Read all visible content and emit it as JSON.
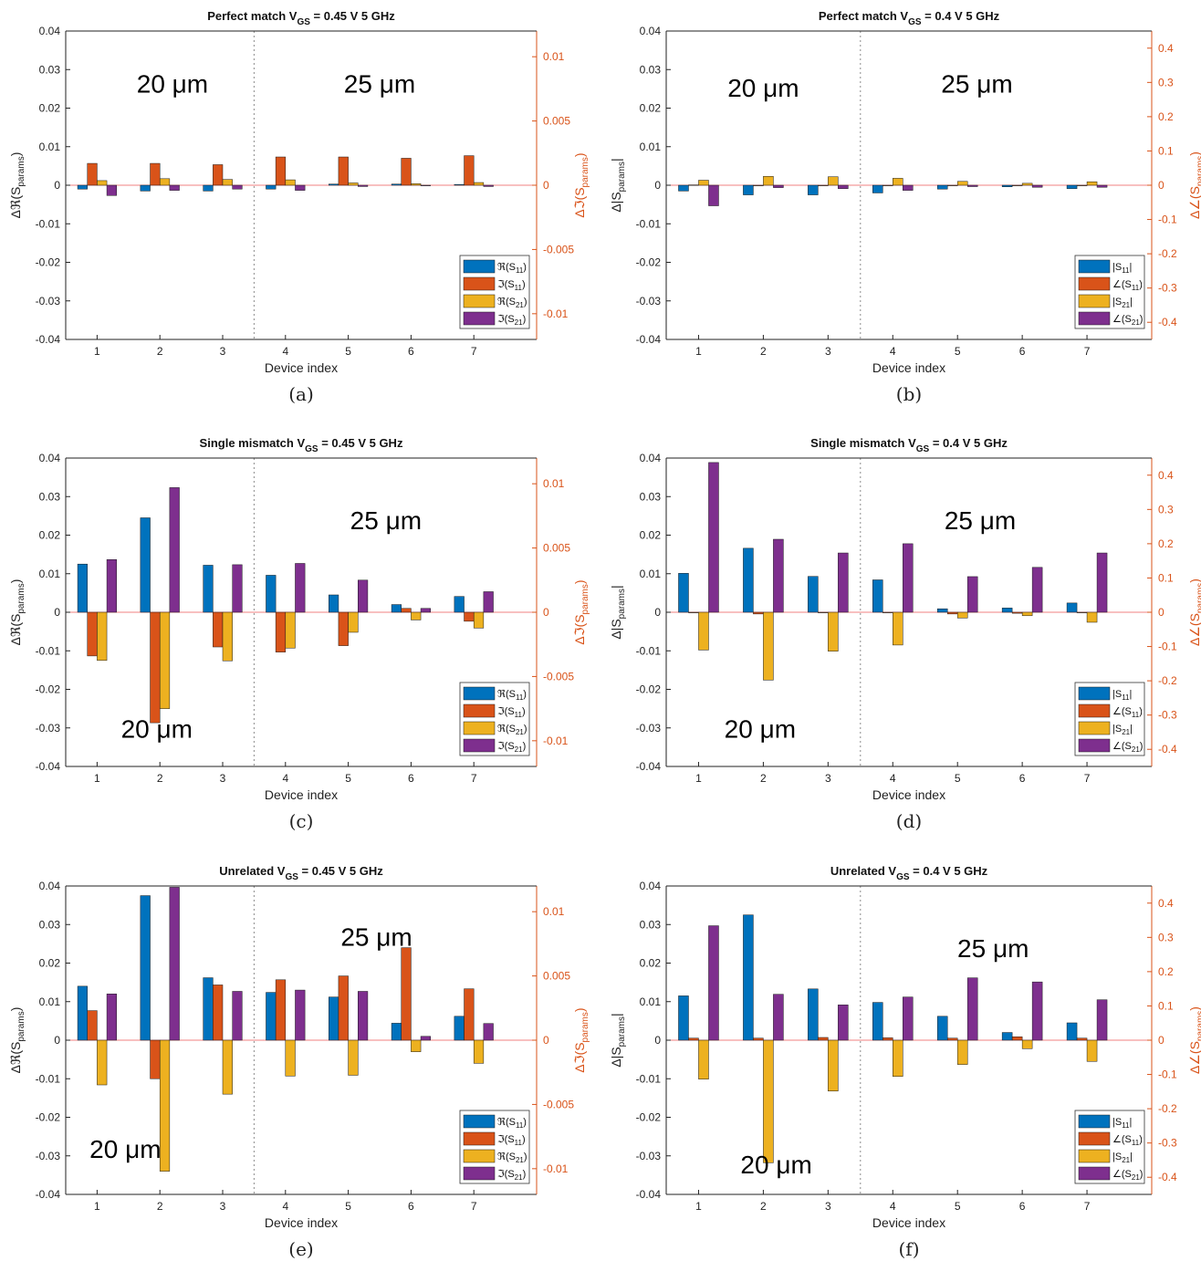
{
  "colors": {
    "s11_primary": "#0072BD",
    "s11_secondary": "#D95319",
    "s21_primary": "#EDB120",
    "s21_secondary": "#7E2F8E",
    "right_axis": "#D95319",
    "axis": "#222222",
    "divider": "#8c8c8c"
  },
  "chart_data": [
    {
      "id": "a",
      "type": "bar",
      "title_prefix": "Perfect match V",
      "title_sub": "GS",
      "title_suffix": " = 0.45 V 5 GHz",
      "xlabel": "Device index",
      "ylabel": "Δℜ(S",
      "ylabel_sub": "params",
      "ylabel_close": ")",
      "y2label": "Δℑ(S",
      "y2label_sub": "params",
      "y2label_close": ")",
      "categories": [
        "1",
        "2",
        "3",
        "4",
        "5",
        "6",
        "7"
      ],
      "ylim": [
        -0.04,
        0.04
      ],
      "yticks": [
        -0.04,
        -0.03,
        -0.02,
        -0.01,
        0,
        0.01,
        0.02,
        0.03,
        0.04
      ],
      "ytick_labels": [
        "-0.04",
        "-0.03",
        "-0.02",
        "-0.01",
        "0",
        "0.01",
        "0.02",
        "0.03",
        "0.04"
      ],
      "y2lim": [
        -0.012,
        0.012
      ],
      "y2ticks": [
        -0.01,
        -0.005,
        0,
        0.005,
        0.01
      ],
      "y2tick_labels": [
        "-0.01",
        "-0.005",
        "0",
        "0.005",
        "0.01"
      ],
      "annotations": [
        {
          "text": "20 μm",
          "x": 2.2,
          "y": 0.024
        },
        {
          "text": "25 μm",
          "x": 5.5,
          "y": 0.024
        }
      ],
      "legend_position": "bottom-right",
      "series": [
        {
          "name": "ℜ(S11)",
          "name_main": "ℜ(S",
          "name_sub": "11",
          "name_close": ")",
          "axis": "left",
          "values": [
            -0.001,
            -0.0015,
            -0.0015,
            -0.001,
            0.0003,
            0.0003,
            0.0002
          ]
        },
        {
          "name": "ℑ(S11)",
          "name_main": "ℑ(S",
          "name_sub": "11",
          "name_close": ")",
          "axis": "right",
          "values": [
            0.0017,
            0.0017,
            0.0016,
            0.0022,
            0.0022,
            0.0021,
            0.0023
          ]
        },
        {
          "name": "ℜ(S21)",
          "name_main": "ℜ(S",
          "name_sub": "21",
          "name_close": ")",
          "axis": "left",
          "values": [
            0.0012,
            0.0017,
            0.0015,
            0.0014,
            0.0006,
            0.0004,
            0.0007
          ]
        },
        {
          "name": "ℑ(S21)",
          "name_main": "ℑ(S",
          "name_sub": "21",
          "name_close": ")",
          "axis": "right",
          "values": [
            -0.0008,
            -0.0004,
            -0.0003,
            -0.0004,
            -0.0001,
            0.0,
            -0.0001
          ]
        }
      ],
      "caption": "(a)"
    },
    {
      "id": "b",
      "type": "bar",
      "title_prefix": "Perfect match V",
      "title_sub": "GS",
      "title_suffix": " = 0.4 V 5 GHz",
      "xlabel": "Device index",
      "ylabel": "Δ|S",
      "ylabel_sub": "params",
      "ylabel_close": "|",
      "y2label": "Δ∠(S",
      "y2label_sub": "params",
      "y2label_close": ")",
      "categories": [
        "1",
        "2",
        "3",
        "4",
        "5",
        "6",
        "7"
      ],
      "ylim": [
        -0.04,
        0.04
      ],
      "yticks": [
        -0.04,
        -0.03,
        -0.02,
        -0.01,
        0,
        0.01,
        0.02,
        0.03,
        0.04
      ],
      "ytick_labels": [
        "-0.04",
        "-0.03",
        "-0.02",
        "-0.01",
        "0",
        "0.01",
        "0.02",
        "0.03",
        "0.04"
      ],
      "y2lim": [
        -0.45,
        0.45
      ],
      "y2ticks": [
        -0.4,
        -0.3,
        -0.2,
        -0.1,
        0,
        0.1,
        0.2,
        0.3,
        0.4
      ],
      "y2tick_labels": [
        "-0.4",
        "-0.3",
        "-0.2",
        "-0.1",
        "0",
        "0.1",
        "0.2",
        "0.3",
        "0.4"
      ],
      "annotations": [
        {
          "text": "20 μm",
          "x": 2.0,
          "y": 0.023
        },
        {
          "text": "25 μm",
          "x": 5.3,
          "y": 0.024
        }
      ],
      "legend_position": "bottom-right",
      "series": [
        {
          "name": "|S11|",
          "name_main": "|S",
          "name_sub": "11",
          "name_close": "|",
          "axis": "left",
          "values": [
            -0.0015,
            -0.0025,
            -0.0025,
            -0.002,
            -0.001,
            -0.0004,
            -0.0009
          ]
        },
        {
          "name": "∠(S11)",
          "name_main": "∠(S",
          "name_sub": "11",
          "name_close": ")",
          "axis": "right",
          "values": [
            0.001,
            0.0,
            0.0,
            0.0,
            0.0,
            0.0,
            0.0
          ]
        },
        {
          "name": "|S21|",
          "name_main": "|S",
          "name_sub": "21",
          "name_close": "|",
          "axis": "left",
          "values": [
            0.0013,
            0.0023,
            0.0022,
            0.0018,
            0.001,
            0.0005,
            0.0009
          ]
        },
        {
          "name": "∠(S21)",
          "name_main": "∠(S",
          "name_sub": "21",
          "name_close": ")",
          "axis": "right",
          "values": [
            -0.06,
            -0.007,
            -0.01,
            -0.015,
            -0.004,
            -0.006,
            -0.006
          ]
        }
      ],
      "caption": "(b)"
    },
    {
      "id": "c",
      "type": "bar",
      "title_prefix": "Single mismatch V",
      "title_sub": "GS",
      "title_suffix": " = 0.45 V 5 GHz",
      "xlabel": "Device index",
      "ylabel": "Δℜ(S",
      "ylabel_sub": "params",
      "ylabel_close": ")",
      "y2label": "Δℑ(S",
      "y2label_sub": "params",
      "y2label_close": ")",
      "categories": [
        "1",
        "2",
        "3",
        "4",
        "5",
        "6",
        "7"
      ],
      "ylim": [
        -0.04,
        0.04
      ],
      "yticks": [
        -0.04,
        -0.03,
        -0.02,
        -0.01,
        0,
        0.01,
        0.02,
        0.03,
        0.04
      ],
      "ytick_labels": [
        "-0.04",
        "-0.03",
        "-0.02",
        "-0.01",
        "0",
        "0.01",
        "0.02",
        "0.03",
        "0.04"
      ],
      "y2lim": [
        -0.012,
        0.012
      ],
      "y2ticks": [
        -0.01,
        -0.005,
        0,
        0.005,
        0.01
      ],
      "y2tick_labels": [
        "-0.01",
        "-0.005",
        "0",
        "0.005",
        "0.01"
      ],
      "annotations": [
        {
          "text": "20 μm",
          "x": 1.95,
          "y": -0.0325
        },
        {
          "text": "25 μm",
          "x": 5.6,
          "y": 0.0215
        }
      ],
      "legend_position": "bottom-right",
      "series": [
        {
          "name": "ℜ(S11)",
          "name_main": "ℜ(S",
          "name_sub": "11",
          "name_close": ")",
          "axis": "left",
          "values": [
            0.0125,
            0.0245,
            0.0122,
            0.0096,
            0.0045,
            0.002,
            0.0041
          ]
        },
        {
          "name": "ℑ(S11)",
          "name_main": "ℑ(S",
          "name_sub": "11",
          "name_close": ")",
          "axis": "right",
          "values": [
            -0.0034,
            -0.0086,
            -0.0027,
            -0.0031,
            -0.0026,
            0.0003,
            -0.0007
          ]
        },
        {
          "name": "ℜ(S21)",
          "name_main": "ℜ(S",
          "name_sub": "21",
          "name_close": ")",
          "axis": "left",
          "values": [
            -0.0125,
            -0.025,
            -0.0126,
            -0.0093,
            -0.0052,
            -0.002,
            -0.0041
          ]
        },
        {
          "name": "ℑ(S21)",
          "name_main": "ℑ(S",
          "name_sub": "21",
          "name_close": ")",
          "axis": "right",
          "values": [
            0.0041,
            0.0097,
            0.0037,
            0.0038,
            0.0025,
            0.0003,
            0.0016
          ]
        }
      ],
      "caption": "(c)"
    },
    {
      "id": "d",
      "type": "bar",
      "title_prefix": "Single mismatch V",
      "title_sub": "GS",
      "title_suffix": " = 0.4 V 5 GHz",
      "xlabel": "Device index",
      "ylabel": "Δ|S",
      "ylabel_sub": "params",
      "ylabel_close": "|",
      "y2label": "Δ∠(S",
      "y2label_sub": "params",
      "y2label_close": ")",
      "categories": [
        "1",
        "2",
        "3",
        "4",
        "5",
        "6",
        "7"
      ],
      "ylim": [
        -0.04,
        0.04
      ],
      "yticks": [
        -0.04,
        -0.03,
        -0.02,
        -0.01,
        0,
        0.01,
        0.02,
        0.03,
        0.04
      ],
      "ytick_labels": [
        "-0.04",
        "-0.03",
        "-0.02",
        "-0.01",
        "0",
        "0.01",
        "0.02",
        "0.03",
        "0.04"
      ],
      "y2lim": [
        -0.45,
        0.45
      ],
      "y2ticks": [
        -0.4,
        -0.3,
        -0.2,
        -0.1,
        0,
        0.1,
        0.2,
        0.3,
        0.4
      ],
      "y2tick_labels": [
        "-0.4",
        "-0.3",
        "-0.2",
        "-0.1",
        "0",
        "0.1",
        "0.2",
        "0.3",
        "0.4"
      ],
      "annotations": [
        {
          "text": "20 μm",
          "x": 1.95,
          "y": -0.0325
        },
        {
          "text": "25 μm",
          "x": 5.35,
          "y": 0.0215
        }
      ],
      "legend_position": "bottom-right",
      "series": [
        {
          "name": "|S11|",
          "name_main": "|S",
          "name_sub": "11",
          "name_close": "|",
          "axis": "left",
          "values": [
            0.0101,
            0.0166,
            0.0093,
            0.0084,
            0.0009,
            0.0011,
            0.0024
          ]
        },
        {
          "name": "∠(S11)",
          "name_main": "∠(S",
          "name_sub": "11",
          "name_close": ")",
          "axis": "right",
          "values": [
            0.0,
            -0.005,
            0.0,
            0.0,
            -0.005,
            -0.003,
            0.0
          ]
        },
        {
          "name": "|S21|",
          "name_main": "|S",
          "name_sub": "21",
          "name_close": "|",
          "axis": "left",
          "values": [
            -0.0098,
            -0.0176,
            -0.0101,
            -0.0085,
            -0.0015,
            -0.0009,
            -0.0026
          ]
        },
        {
          "name": "∠(S21)",
          "name_main": "∠(S",
          "name_sub": "21",
          "name_close": ")",
          "axis": "right",
          "values": [
            0.437,
            0.213,
            0.173,
            0.2,
            0.104,
            0.131,
            0.173
          ]
        }
      ],
      "caption": "(d)"
    },
    {
      "id": "e",
      "type": "bar",
      "title_prefix": "Unrelated V",
      "title_sub": "GS",
      "title_suffix": " = 0.45 V 5 GHz",
      "xlabel": "Device index",
      "ylabel": "Δℜ(S",
      "ylabel_sub": "params",
      "ylabel_close": ")",
      "y2label": "Δℑ(S",
      "y2label_sub": "params",
      "y2label_close": ")",
      "categories": [
        "1",
        "2",
        "3",
        "4",
        "5",
        "6",
        "7"
      ],
      "ylim": [
        -0.04,
        0.04
      ],
      "yticks": [
        -0.04,
        -0.03,
        -0.02,
        -0.01,
        0,
        0.01,
        0.02,
        0.03,
        0.04
      ],
      "ytick_labels": [
        "-0.04",
        "-0.03",
        "-0.02",
        "-0.01",
        "0",
        "0.01",
        "0.02",
        "0.03",
        "0.04"
      ],
      "y2lim": [
        -0.012,
        0.012
      ],
      "y2ticks": [
        -0.01,
        -0.005,
        0,
        0.005,
        0.01
      ],
      "y2tick_labels": [
        "-0.01",
        "-0.005",
        "0",
        "0.005",
        "0.01"
      ],
      "annotations": [
        {
          "text": "20 μm",
          "x": 1.45,
          "y": -0.0305
        },
        {
          "text": "25 μm",
          "x": 5.45,
          "y": 0.0245
        }
      ],
      "legend_position": "bottom-right",
      "series": [
        {
          "name": "ℜ(S11)",
          "name_main": "ℜ(S",
          "name_sub": "11",
          "name_close": ")",
          "axis": "left",
          "values": [
            0.014,
            0.0375,
            0.0162,
            0.0124,
            0.0112,
            0.0044,
            0.0062
          ]
        },
        {
          "name": "ℑ(S11)",
          "name_main": "ℑ(S",
          "name_sub": "11",
          "name_close": ")",
          "axis": "right",
          "values": [
            0.0023,
            -0.003,
            0.0043,
            0.0047,
            0.005,
            0.0072,
            0.004
          ]
        },
        {
          "name": "ℜ(S21)",
          "name_main": "ℜ(S",
          "name_sub": "21",
          "name_close": ")",
          "axis": "left",
          "values": [
            -0.0116,
            -0.034,
            -0.014,
            -0.0093,
            -0.0091,
            -0.003,
            -0.006
          ]
        },
        {
          "name": "ℑ(S21)",
          "name_main": "ℑ(S",
          "name_sub": "21",
          "name_close": ")",
          "axis": "right",
          "values": [
            0.0036,
            0.0119,
            0.0038,
            0.0039,
            0.0038,
            0.0003,
            0.0013
          ]
        }
      ],
      "caption": "(e)"
    },
    {
      "id": "f",
      "type": "bar",
      "title_prefix": "Unrelated  V",
      "title_sub": "GS",
      "title_suffix": " = 0.4 V 5 GHz",
      "xlabel": "Device index",
      "ylabel": "Δ|S",
      "ylabel_sub": "params",
      "ylabel_close": "|",
      "y2label": "Δ∠(S",
      "y2label_sub": "params",
      "y2label_close": ")",
      "categories": [
        "1",
        "2",
        "3",
        "4",
        "5",
        "6",
        "7"
      ],
      "ylim": [
        -0.04,
        0.04
      ],
      "yticks": [
        -0.04,
        -0.03,
        -0.02,
        -0.01,
        0,
        0.01,
        0.02,
        0.03,
        0.04
      ],
      "ytick_labels": [
        "-0.04",
        "-0.03",
        "-0.02",
        "-0.01",
        "0",
        "0.01",
        "0.02",
        "0.03",
        "0.04"
      ],
      "y2lim": [
        -0.45,
        0.45
      ],
      "y2ticks": [
        -0.4,
        -0.3,
        -0.2,
        -0.1,
        0,
        0.1,
        0.2,
        0.3,
        0.4
      ],
      "y2tick_labels": [
        "-0.4",
        "-0.3",
        "-0.2",
        "-0.1",
        "0",
        "0.1",
        "0.2",
        "0.3",
        "0.4"
      ],
      "annotations": [
        {
          "text": "20 μm",
          "x": 2.2,
          "y": -0.0345
        },
        {
          "text": "25 μm",
          "x": 5.55,
          "y": 0.0215
        }
      ],
      "legend_position": "bottom-right",
      "series": [
        {
          "name": "|S11|",
          "name_main": "|S",
          "name_sub": "11",
          "name_close": "|",
          "axis": "left",
          "values": [
            0.0115,
            0.0325,
            0.0133,
            0.0098,
            0.0062,
            0.002,
            0.0045
          ]
        },
        {
          "name": "∠(S11)",
          "name_main": "∠(S",
          "name_sub": "11",
          "name_close": ")",
          "axis": "right",
          "values": [
            0.006,
            0.006,
            0.008,
            0.007,
            0.006,
            0.01,
            0.006
          ]
        },
        {
          "name": "|S21|",
          "name_main": "|S",
          "name_sub": "21",
          "name_close": "|",
          "axis": "left",
          "values": [
            -0.0101,
            -0.0318,
            -0.0132,
            -0.0094,
            -0.0063,
            -0.0022,
            -0.0055
          ]
        },
        {
          "name": "∠(S21)",
          "name_main": "∠(S",
          "name_sub": "21",
          "name_close": ")",
          "axis": "right",
          "values": [
            0.334,
            0.134,
            0.103,
            0.126,
            0.182,
            0.17,
            0.118
          ]
        }
      ],
      "caption": "(f)"
    }
  ]
}
